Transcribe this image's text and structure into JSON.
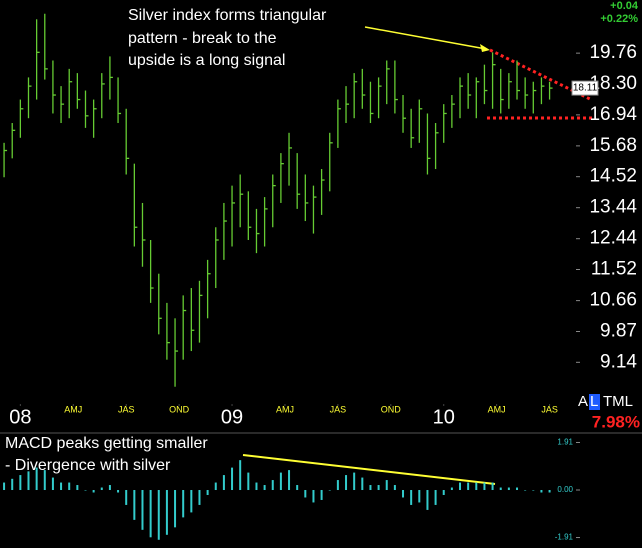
{
  "chart_data": [
    {
      "type": "ohlc",
      "color": "#66cc33",
      "log_scale": true,
      "x": [
        -4,
        -2,
        0,
        2,
        4,
        6,
        8,
        10,
        12,
        14,
        16,
        18,
        20,
        22,
        24,
        26,
        28,
        30,
        32,
        34,
        36,
        38,
        40,
        42,
        44,
        46,
        48,
        50,
        52,
        54,
        56,
        58,
        60,
        62,
        64,
        66,
        68,
        70,
        72,
        74,
        76,
        78,
        80,
        82,
        84,
        86,
        88,
        90,
        92,
        94,
        96,
        98,
        100,
        102,
        104,
        106,
        108,
        110,
        112,
        114,
        116,
        118,
        120,
        122,
        124,
        126,
        128,
        130
      ],
      "high": [
        15.8,
        16.6,
        17.6,
        18.6,
        21.5,
        21.8,
        19.4,
        18.2,
        19.0,
        18.8,
        18.0,
        17.6,
        18.8,
        19.6,
        18.6,
        17.2,
        15.0,
        13.6,
        12.4,
        11.4,
        10.6,
        10.2,
        10.8,
        11.0,
        11.2,
        11.8,
        12.8,
        13.6,
        14.2,
        14.6,
        14.0,
        13.4,
        13.8,
        14.6,
        15.4,
        16.2,
        15.4,
        14.6,
        14.2,
        14.8,
        16.2,
        17.6,
        18.2,
        18.8,
        19.0,
        18.4,
        18.6,
        19.4,
        19.4,
        17.8,
        17.2,
        17.6,
        17.0,
        16.6,
        17.4,
        17.8,
        18.6,
        18.8,
        18.6,
        19.2,
        19.8,
        19.0,
        18.8,
        19.4,
        18.6,
        18.4,
        18.6,
        18.4
      ],
      "low": [
        14.5,
        15.2,
        16.0,
        16.8,
        17.6,
        18.5,
        17.0,
        16.6,
        16.8,
        17.2,
        16.4,
        16.0,
        16.8,
        17.6,
        16.6,
        14.6,
        12.2,
        11.6,
        10.6,
        9.8,
        9.2,
        8.6,
        9.2,
        9.4,
        9.6,
        10.2,
        11.0,
        11.8,
        12.2,
        12.8,
        12.4,
        12.0,
        12.2,
        12.8,
        13.6,
        14.2,
        13.4,
        13.0,
        12.6,
        13.2,
        14.0,
        15.6,
        16.6,
        16.8,
        17.2,
        16.6,
        16.8,
        17.4,
        17.0,
        16.2,
        15.6,
        15.8,
        14.6,
        14.8,
        15.8,
        16.4,
        16.8,
        17.2,
        16.8,
        17.4,
        17.2,
        17.0,
        17.2,
        17.6,
        17.2,
        17.0,
        17.4,
        17.6
      ],
      "close": [
        15.5,
        16.3,
        17.2,
        18.2,
        19.8,
        19.0,
        17.8,
        17.4,
        18.4,
        17.6,
        16.9,
        17.2,
        18.3,
        18.6,
        17.0,
        15.2,
        12.8,
        12.4,
        11.0,
        10.2,
        9.6,
        9.4,
        10.4,
        9.9,
        10.8,
        11.4,
        12.4,
        13.0,
        13.6,
        13.9,
        12.8,
        12.6,
        13.4,
        14.2,
        15.0,
        15.6,
        13.9,
        13.6,
        13.8,
        14.4,
        15.8,
        17.2,
        17.4,
        18.4,
        17.8,
        17.0,
        18.2,
        19.0,
        17.6,
        16.8,
        16.0,
        17.2,
        15.2,
        16.2,
        17.0,
        17.4,
        18.2,
        17.8,
        18.4,
        18.0,
        19.2,
        17.6,
        18.4,
        18.0,
        17.8,
        18.0,
        18.2,
        18.11
      ],
      "last_label": "18.11",
      "ylim": [
        8.32,
        22.56
      ],
      "yticks": [
        19.76,
        {
          "value": 18.3,
          "label": "18.30"
        },
        16.94,
        15.68,
        14.52,
        13.44,
        12.44,
        11.52,
        10.66,
        9.87,
        9.14
      ],
      "xlim": [
        -5,
        136
      ],
      "xticks": [
        {
          "value": 0,
          "label": "08"
        },
        {
          "value": 13,
          "label": "AMJ"
        },
        {
          "value": 26,
          "label": "JAS"
        },
        {
          "value": 39,
          "label": "OND"
        },
        {
          "value": 52,
          "label": "09"
        },
        {
          "value": 65,
          "label": "AMJ"
        },
        {
          "value": 78,
          "label": "JAS"
        },
        {
          "value": 91,
          "label": "OND"
        },
        {
          "value": 104,
          "label": "10"
        },
        {
          "value": 117,
          "label": "AMJ"
        },
        {
          "value": 130,
          "label": "JAS"
        }
      ],
      "annotation": [
        "Silver index forms triangular",
        "pattern - break to the",
        "upside is a long signal"
      ]
    },
    {
      "type": "bar",
      "color": "#33cccc",
      "x": [
        -4,
        -2,
        0,
        2,
        4,
        6,
        8,
        10,
        12,
        14,
        16,
        18,
        20,
        22,
        24,
        26,
        28,
        30,
        32,
        34,
        36,
        38,
        40,
        42,
        44,
        46,
        48,
        50,
        52,
        54,
        56,
        58,
        60,
        62,
        64,
        66,
        68,
        70,
        72,
        74,
        76,
        78,
        80,
        82,
        84,
        86,
        88,
        90,
        92,
        94,
        96,
        98,
        100,
        102,
        104,
        106,
        108,
        110,
        112,
        114,
        116,
        118,
        120,
        122,
        124,
        126,
        128,
        130
      ],
      "values": [
        0.3,
        0.45,
        0.6,
        0.75,
        0.9,
        0.8,
        0.5,
        0.3,
        0.3,
        0.2,
        0.0,
        -0.1,
        0.1,
        0.2,
        -0.1,
        -0.6,
        -1.2,
        -1.6,
        -1.9,
        -2.0,
        -1.8,
        -1.5,
        -1.1,
        -0.9,
        -0.6,
        -0.2,
        0.3,
        0.6,
        0.9,
        1.2,
        0.7,
        0.3,
        0.2,
        0.4,
        0.7,
        0.8,
        0.2,
        -0.3,
        -0.5,
        -0.4,
        0.0,
        0.4,
        0.6,
        0.7,
        0.5,
        0.2,
        0.2,
        0.4,
        0.2,
        -0.3,
        -0.6,
        -0.5,
        -0.8,
        -0.6,
        -0.2,
        0.1,
        0.3,
        0.3,
        0.3,
        0.3,
        0.3,
        0.1,
        0.1,
        0.1,
        0.0,
        0.0,
        -0.1,
        -0.1
      ],
      "xlim": [
        -5,
        136
      ],
      "ylim": [
        -2.33,
        2.13
      ],
      "yticks": [
        1.91,
        {
          "value": 0,
          "label": "0.00"
        },
        -1.91
      ],
      "annotation": [
        "MACD peaks getting smaller",
        "- Divergence with silver"
      ]
    }
  ],
  "quote": {
    "change": "+0.04",
    "change_pct": "+0.22%"
  },
  "indicator": {
    "a": "A",
    "l": "L",
    "rest": "TML",
    "value": "7.98%"
  }
}
